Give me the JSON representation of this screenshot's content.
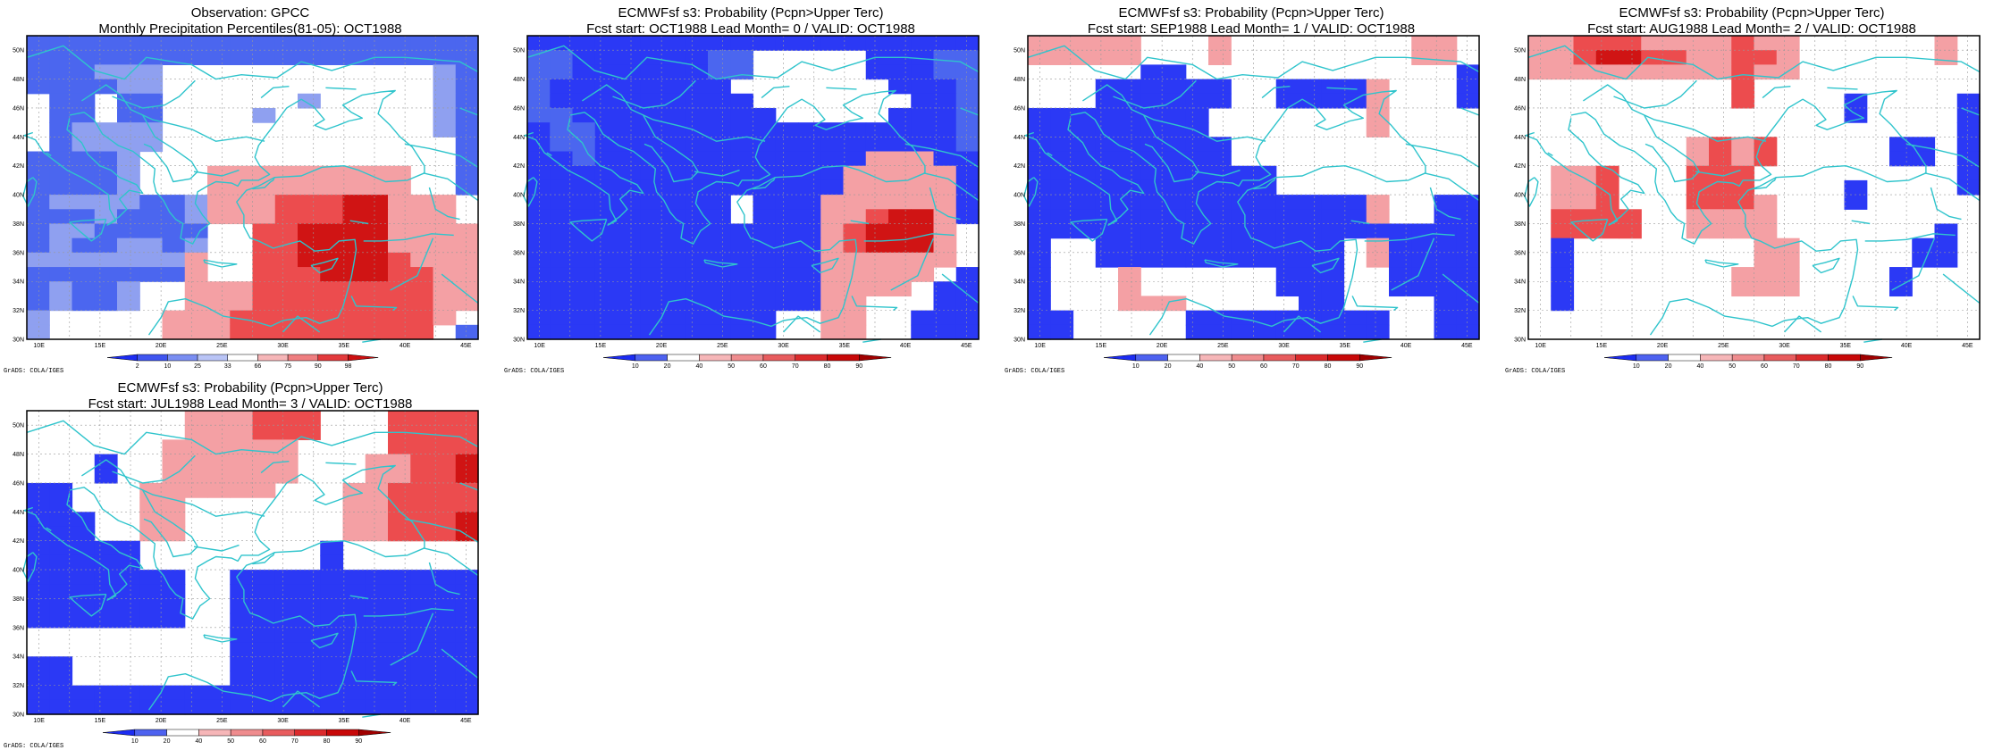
{
  "panels": [
    {
      "title_line1": "Observation: GPCC",
      "title_line2": "Monthly Precipitation Percentiles(81-05): OCT1988",
      "colorbar_ticks": [
        "2",
        "10",
        "25",
        "33",
        "66",
        "75",
        "90",
        "98"
      ],
      "grid": [
        "nnnnnnnnnnnnnnnnnnnn",
        "nnnnnnnnnnnnnnnnnnnn",
        "nnnmmmwwwwwwwwwwwwmn",
        "nnnnmmwwwwwwwwwwwwmn",
        "wnnwnnwwwwwwmwwwwwmn",
        "wnnwnnwwwwmwwwwwwwmn",
        "wnmmmmwwwwwwwwwwwwmn",
        "wnmmmmwwwwwwwwwwwwwn",
        "nnnnmwwwwwwwwwwwwwwn",
        "nnnnmwwwlllllllllwwn",
        "nnnnmwwwlllllllllwwn",
        "nmmmmnnmllldddDDlllw",
        "nnnmnnnmllldddDDlllw",
        "nmmnnnnnwwddDDDDllll",
        "nmnnmmnmwwddDDDDllll",
        "mmmmmmmlwwddDDDDdlll",
        "nnnnnnnlwwdddDDDddll",
        "nmnnmwwlllddddddddll",
        "nmnnmwwlllddddddddll",
        "mwwwwwllldddddddddlw",
        "mwwwwwllldddddddddwn"
      ],
      "credit": "GrADS: COLA/IGES"
    },
    {
      "title_line1": "ECMWFsf s3: Probability (Pcpn>Upper Terc)",
      "title_line2": "Fcst start: OCT1988   Lead Month= 0 / VALID: OCT1988",
      "colorbar_ticks": [
        "10",
        "20",
        "40",
        "50",
        "60",
        "70",
        "80",
        "90"
      ],
      "grid": [
        "BBBBBBBBBBBBBBBBBBBB",
        "nnBBBBBBnnwwwwwBBBnn",
        "nnBBBBBBnnwwwwwBBBnn",
        "nBBBBBBBBwwwwwwwBBBn",
        "nBBBBBBBBBwwwwwwwBBn",
        "nnBBBBBBBBBwwwwwBBBn",
        "BnnBBBBBBBBBBBBBBBBn",
        "BnnBBBBBBBBBBBBBBBBn",
        "BBnBBBBBBBBBBBBlllBB",
        "BBBBBBBBBBBBBBlllllB",
        "BBBBBBBBBBBBBBlllllB",
        "BBBBBBBBBwBBBllllllB",
        "BBBBBBBBBwBBBlldDDlB",
        "BBBBBBBBBBBBBldDDDlw",
        "BBBBBBBBBBBBBldDDDlw",
        "BBBBBBBBBBBBBllllllw",
        "BBBBBBBBBBBBBlllllwB",
        "BBBBBBBBBBBBBllllwBB",
        "BBBBBBBBBBBBBllwwwBB",
        "BBBBBBBBBBBwwllwwBBB",
        "BBBBBBBBBBBwwllwwBBB"
      ],
      "credit": "GrADS: COLA/IGES"
    },
    {
      "title_line1": "ECMWFsf s3: Probability (Pcpn>Upper Terc)",
      "title_line2": "Fcst start: SEP1988   Lead Month= 1 / VALID: OCT1988",
      "colorbar_ticks": [
        "10",
        "20",
        "40",
        "50",
        "60",
        "70",
        "80",
        "90"
      ],
      "grid": [
        "lllllwwwlwwwwwwwwllw",
        "lllllwwwlwwwwwwwwllw",
        "wwwwwBBwwwwwwwwwwwwB",
        "wwwBBBBBBwwBBBBlwwwB",
        "wwwBBBBBBwwBBBBlwwwB",
        "BBBBBBBBwwwwwwwlwwww",
        "BBBBBBBBwwwwwwwlwwww",
        "BBBBBBBBBwwwwwwwwwww",
        "BBBBBBBBBwwwwwwwwwww",
        "BBBBBBBBBBBwwwwwwwww",
        "BBBBBBBBBBBwwwwwwwww",
        "BBBBBBBBBBBBBBBlwwBB",
        "BBBBBBBBBBBBBBBlwwBB",
        "BBBBBBBBBBBBBBBBBBBB",
        "BwwBBBBBBBBBBBwlBBBB",
        "BwwBBBBBBBBBBBwlBBBB",
        "BwwwlwwwwwwBBBwwBBBB",
        "BwwwlwwwwwwBBBwwBBBB",
        "BwwwlllwwwwwBBwwwwBB",
        "BBwwwwwBBBBBBBBBwwBB",
        "BBwwwwwBBBBBBBBBwwBB"
      ],
      "credit": "GrADS: COLA/IGES"
    },
    {
      "title_line1": "ECMWFsf s3: Probability (Pcpn>Upper Terc)",
      "title_line2": "Fcst start: AUG1988   Lead Month= 2 / VALID: OCT1988",
      "colorbar_ticks": [
        "10",
        "20",
        "40",
        "50",
        "60",
        "70",
        "80",
        "90"
      ],
      "grid": [
        "lldddlllldllwwwwwwlw",
        "lldDDddllddlwwwwwwlw",
        "llllllllldllwwwwwwww",
        "wwwwwwwwwdwwwwwwwwww",
        "wwwwwwwwwdwwwwBwwwwB",
        "wwwwwwwwwwwwwwBwwwwB",
        "wwwwwwwwwwwwwwwwwwwB",
        "wwwwwwwldldwwwwwBBwB",
        "wwwwwwwldldwwwwwBBwB",
        "wlldwwwdddwwwwwwwwwB",
        "wlldwwwdddwwwwBwwwwB",
        "wlldwwwdddlwwwBwwwww",
        "wddddwwllllwwwwwwwww",
        "wddddwwllllwwwwwwwBw",
        "wBwwwwwwwwllwwwwwBBw",
        "wBwwwwwwwwllwwwwwBBw",
        "wBwwwwwwwlllwwwwBwww",
        "wBwwwwwwwlllwwwwBwww",
        "wBwwwwwwwwwwwwwwwwww",
        "wwwwwwwwwwwwwwwwwwww",
        "wwwwwwwwwwwwwwwwwwww"
      ],
      "credit": "GrADS: COLA/IGES"
    },
    {
      "title_line1": "ECMWFsf s3: Probability (Pcpn>Upper Terc)",
      "title_line2": "Fcst start: JUL1988   Lead Month= 3 / VALID: OCT1988",
      "colorbar_ticks": [
        "10",
        "20",
        "40",
        "50",
        "60",
        "70",
        "80",
        "90"
      ],
      "grid": [
        "wwwwwwwllldddwwwdddd",
        "wwwwwwwllldddwwwdddd",
        "wwwwwwllllllwwwwdddd",
        "wwwBwwllllllwwwllddD",
        "wwwBwwllllllwwwllddD",
        "BBwwwllllllwwwlldddd",
        "BBwwwllwwwwwwwlldddd",
        "BBBwwllwwwwwwwlldddD",
        "BBBwwllwwwwwwwlldddD",
        "BBBBBwwwwwwwwBwwwwww",
        "BBBBBwwwwwwwwBwwwwww",
        "BBBBBBBwwBBBBBBBBBBB",
        "BBBBBBBwwBBBBBBBBBBB",
        "BBBBBBBwwBBBBBBBBBBB",
        "BBBBBBBwwBBBBBBBBBBB",
        "wwwwwwwwwBBBBBBBBBBB",
        "wwwwwwwwwBBBBBBBBBBB",
        "BBwwwwwwwBBBBBBBBBBB",
        "BBwwwwwwwBBBBBBBBBBB",
        "BBBBBBBBBBBBBBBBBBBB",
        "BBBBBBBBBBBBBBBBBBBB"
      ],
      "credit": "GrADS: COLA/IGES"
    }
  ],
  "axis": {
    "lon_labels": [
      "10E",
      "15E",
      "20E",
      "25E",
      "30E",
      "35E",
      "40E",
      "45E"
    ],
    "lat_labels": [
      "50N",
      "48N",
      "46N",
      "44N",
      "42N",
      "40N",
      "38N",
      "36N",
      "34N",
      "32N",
      "30N"
    ]
  },
  "colors": {
    "B": "#2b39f5",
    "n": "#4b66ef",
    "m": "#8fa0f0",
    "w": "#ffffff",
    "l": "#f4a0a4",
    "d": "#ec4c4e",
    "D": "#d01414",
    "coast": "#2fc4cc",
    "colorbar_obs": [
      "#1c2cf2",
      "#3f55f0",
      "#7a8ef2",
      "#b9c4f6",
      "#ffffff",
      "#f6b6b8",
      "#ef7e80",
      "#e33a3c",
      "#cc0f10"
    ],
    "colorbar_fcst": [
      "#1c2cf2",
      "#4e62f0",
      "#ffffff",
      "#f6b6b8",
      "#ef8c8e",
      "#e85c5e",
      "#dc2a2c",
      "#c80808",
      "#a00000"
    ]
  }
}
